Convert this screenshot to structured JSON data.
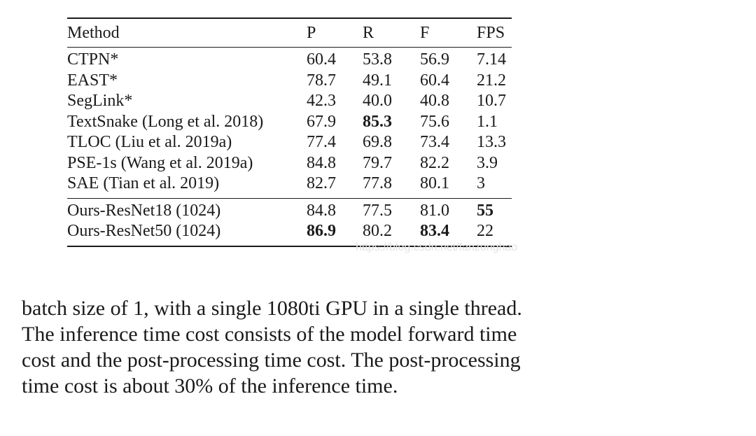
{
  "table": {
    "headers": {
      "method": "Method",
      "p": "P",
      "r": "R",
      "f": "F",
      "fps": "FPS"
    },
    "rows_group1": [
      {
        "method": "CTPN*",
        "p": "60.4",
        "r": "53.8",
        "f": "56.9",
        "fps": "7.14"
      },
      {
        "method": "EAST*",
        "p": "78.7",
        "r": "49.1",
        "f": "60.4",
        "fps": "21.2"
      },
      {
        "method": "SegLink*",
        "p": "42.3",
        "r": "40.0",
        "f": "40.8",
        "fps": "10.7"
      },
      {
        "method": "TextSnake (Long et al. 2018)",
        "p": "67.9",
        "r": "85.3",
        "f": "75.6",
        "fps": "1.1"
      },
      {
        "method": "TLOC (Liu et al. 2019a)",
        "p": "77.4",
        "r": "69.8",
        "f": "73.4",
        "fps": "13.3"
      },
      {
        "method": "PSE-1s (Wang et al. 2019a)",
        "p": "84.8",
        "r": "79.7",
        "f": "82.2",
        "fps": "3.9"
      },
      {
        "method": "SAE (Tian et al. 2019)",
        "p": "82.7",
        "r": "77.8",
        "f": "80.1",
        "fps": "3"
      }
    ],
    "rows_group2": [
      {
        "method": "Ours-ResNet18 (1024)",
        "p": "84.8",
        "r": "77.5",
        "f": "81.0",
        "fps": "55"
      },
      {
        "method": "Ours-ResNet50 (1024)",
        "p": "86.9",
        "r": "80.2",
        "f": "83.4",
        "fps": "22"
      }
    ],
    "bold_cells": [
      "rows_group1.3.r",
      "rows_group2.0.fps",
      "rows_group2.1.p",
      "rows_group2.1.f"
    ]
  },
  "watermark": "https://blog.csdn.net/fanzonghao",
  "paragraph": {
    "lines": [
      "batch size of 1, with a single 1080ti GPU in a single thread.",
      "The inference time cost consists of the model forward time",
      "cost and the post-processing time cost. The post-processing",
      "time cost is about 30% of the inference time."
    ]
  }
}
